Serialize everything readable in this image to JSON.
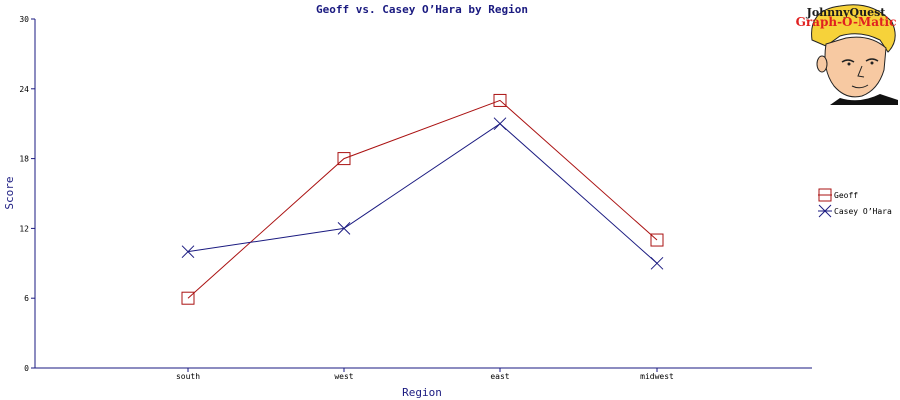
{
  "logo": {
    "line1": "JohnnyQuest",
    "line2": "Graph-O-Matic"
  },
  "chart_data": {
    "type": "line",
    "title": "Geoff vs. Casey O’Hara by Region",
    "xlabel": "Region",
    "ylabel": "Score",
    "categories": [
      "south",
      "west",
      "east",
      "midwest"
    ],
    "ylim": [
      0,
      30
    ],
    "yticks": [
      0,
      6,
      12,
      18,
      24,
      30
    ],
    "grid": false,
    "legend_position": "right",
    "series": [
      {
        "name": "Geoff",
        "values": [
          6,
          18,
          23,
          11
        ],
        "color": "#aa1111",
        "marker": "square"
      },
      {
        "name": "Casey O’Hara",
        "values": [
          10,
          12,
          21,
          9
        ],
        "color": "#1a1a80",
        "marker": "x"
      }
    ],
    "axis_color": "#1a1a80"
  }
}
